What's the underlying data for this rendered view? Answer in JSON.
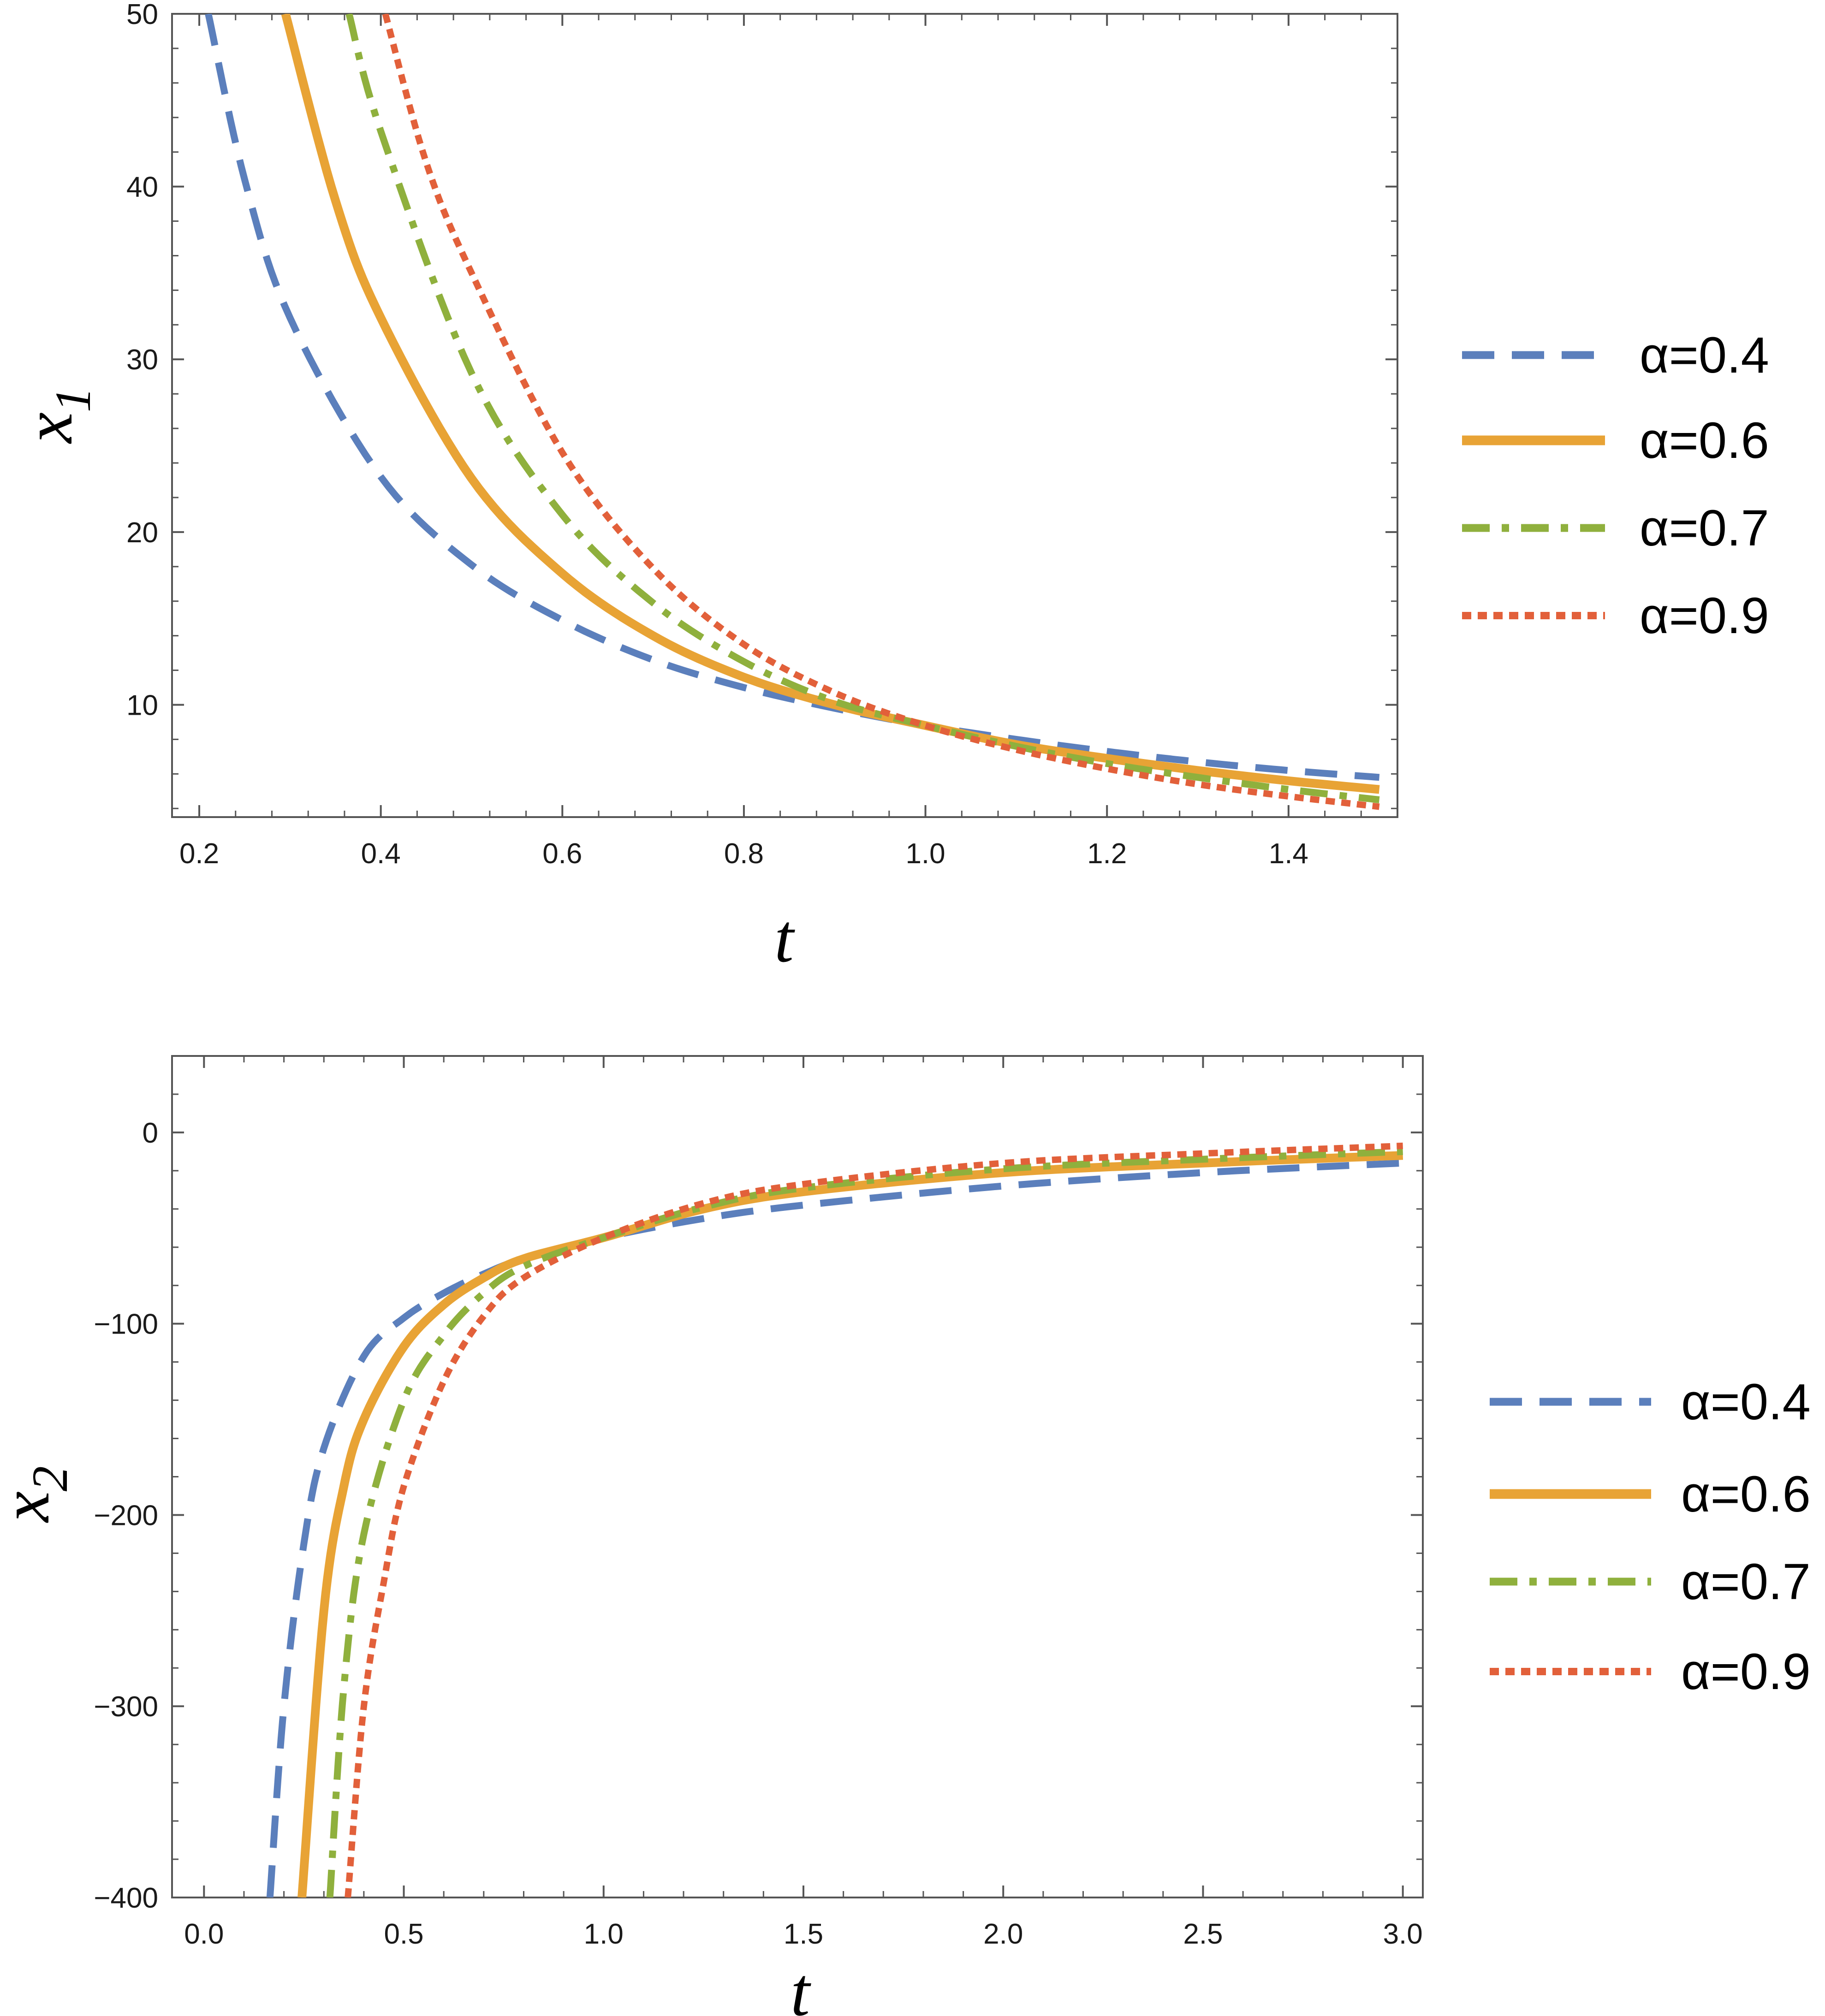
{
  "chart_data": [
    {
      "type": "line",
      "xlabel": "t",
      "ylabel": "x",
      "ylabel_subscript": "1",
      "xlim": [
        0.17,
        1.52
      ],
      "ylim": [
        3.5,
        50
      ],
      "xticks": [
        0.2,
        0.4,
        0.6,
        0.8,
        1.0,
        1.2,
        1.4
      ],
      "xtick_labels": [
        "0.2",
        "0.4",
        "0.6",
        "0.8",
        "1.0",
        "1.2",
        "1.4"
      ],
      "yticks": [
        10,
        20,
        30,
        40,
        50
      ],
      "ytick_labels": [
        "10",
        "20",
        "30",
        "40",
        "50"
      ],
      "legend_position": "right",
      "series": [
        {
          "name": "α=0.4",
          "color": "#5b7fbc",
          "style": "dashed",
          "x": [
            0.21,
            0.25,
            0.3,
            0.4,
            0.5,
            0.6,
            0.7,
            0.8,
            0.9,
            1.0,
            1.1,
            1.2,
            1.3,
            1.4,
            1.5
          ],
          "y": [
            50,
            40.4,
            32.4,
            23.2,
            18.1,
            14.9,
            12.6,
            11.0,
            9.8,
            8.8,
            8.0,
            7.3,
            6.7,
            6.2,
            5.8
          ]
        },
        {
          "name": "α=0.6",
          "color": "#e8a335",
          "style": "solid",
          "x": [
            0.295,
            0.35,
            0.4,
            0.5,
            0.6,
            0.7,
            0.8,
            0.9,
            1.0,
            1.1,
            1.2,
            1.3,
            1.4,
            1.5
          ],
          "y": [
            50,
            39.2,
            32.4,
            23.1,
            17.6,
            14.0,
            11.6,
            10.0,
            8.8,
            7.7,
            6.9,
            6.2,
            5.6,
            5.1
          ]
        },
        {
          "name": "α=0.7",
          "color": "#8fb03d",
          "style": "dashdot",
          "x": [
            0.365,
            0.4,
            0.5,
            0.6,
            0.7,
            0.8,
            0.9,
            1.0,
            1.1,
            1.2,
            1.3,
            1.4,
            1.5
          ],
          "y": [
            50,
            43.2,
            29.2,
            21.0,
            15.9,
            12.5,
            10.2,
            8.8,
            7.6,
            6.6,
            5.8,
            5.1,
            4.5
          ]
        },
        {
          "name": "α=0.9",
          "color": "#e2603a",
          "style": "dotted",
          "x": [
            0.405,
            0.45,
            0.5,
            0.6,
            0.7,
            0.8,
            0.9,
            1.0,
            1.1,
            1.2,
            1.3,
            1.4,
            1.5
          ],
          "y": [
            50,
            41.4,
            35.0,
            24.6,
            17.9,
            13.5,
            10.7,
            8.8,
            7.4,
            6.3,
            5.4,
            4.7,
            4.1
          ]
        }
      ]
    },
    {
      "type": "line",
      "xlabel": "t",
      "ylabel": "x",
      "ylabel_subscript": "2",
      "xlim": [
        -0.08,
        3.05
      ],
      "ylim": [
        -400,
        40
      ],
      "xticks": [
        0.0,
        0.5,
        1.0,
        1.5,
        2.0,
        2.5,
        3.0
      ],
      "xtick_labels": [
        "0.0",
        "0.5",
        "1.0",
        "1.5",
        "2.0",
        "2.5",
        "3.0"
      ],
      "yticks": [
        0,
        -100,
        -200,
        -300,
        -400
      ],
      "ytick_labels": [
        "0",
        "−100",
        "−200",
        "−300",
        "−400"
      ],
      "legend_position": "right",
      "series": [
        {
          "name": "α=0.4",
          "color": "#5b7fbc",
          "style": "dashed",
          "x": [
            0.165,
            0.2,
            0.25,
            0.3,
            0.4,
            0.5,
            0.6,
            0.7,
            0.8,
            1.0,
            1.25,
            1.5,
            2.0,
            2.5,
            3.0
          ],
          "y": [
            -400,
            -300,
            -215,
            -165,
            -117,
            -97,
            -84,
            -74,
            -66,
            -55,
            -45,
            -38,
            -28,
            -21,
            -16
          ]
        },
        {
          "name": "α=0.6",
          "color": "#e8a335",
          "style": "solid",
          "x": [
            0.245,
            0.3,
            0.35,
            0.4,
            0.5,
            0.6,
            0.7,
            0.8,
            1.0,
            1.25,
            1.5,
            2.0,
            2.5,
            3.0
          ],
          "y": [
            -400,
            -250,
            -185,
            -150,
            -112,
            -90,
            -76,
            -66,
            -55,
            -40,
            -31,
            -21,
            -16,
            -12
          ]
        },
        {
          "name": "α=0.7",
          "color": "#8fb03d",
          "style": "dashdot",
          "x": [
            0.315,
            0.35,
            0.4,
            0.5,
            0.6,
            0.7,
            0.8,
            1.0,
            1.25,
            1.5,
            2.0,
            2.5,
            3.0
          ],
          "y": [
            -400,
            -290,
            -210,
            -140,
            -106,
            -84,
            -70,
            -55,
            -39,
            -29,
            -19,
            -14,
            -10
          ]
        },
        {
          "name": "α=0.9",
          "color": "#e2603a",
          "style": "dotted",
          "x": [
            0.36,
            0.4,
            0.45,
            0.5,
            0.6,
            0.7,
            0.8,
            1.0,
            1.25,
            1.5,
            2.0,
            2.5,
            3.0
          ],
          "y": [
            -400,
            -300,
            -235,
            -185,
            -130,
            -96,
            -76,
            -55,
            -37,
            -27,
            -16,
            -11,
            -7
          ]
        }
      ]
    }
  ]
}
